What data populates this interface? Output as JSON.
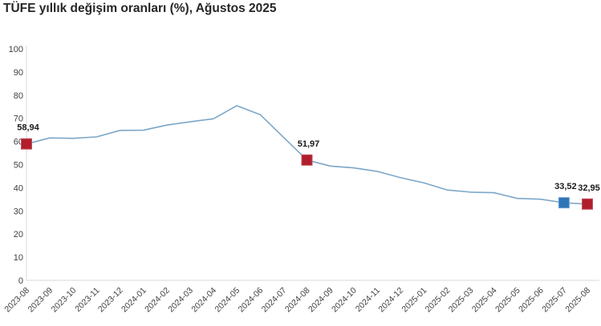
{
  "header": {
    "title": "TÜFE yıllık değişim oranları (%), Ağustos 2025"
  },
  "chart_data": {
    "type": "line",
    "title": "TÜFE yıllık değişim oranları (%), Ağustos 2025",
    "x": [
      "2023-08",
      "2023-09",
      "2023-10",
      "2023-11",
      "2023-12",
      "2024-01",
      "2024-02",
      "2024-03",
      "2024-04",
      "2024-05",
      "2024-06",
      "2024-07",
      "2024-08",
      "2024-09",
      "2024-10",
      "2024-11",
      "2024-12",
      "2025-01",
      "2025-02",
      "2025-03",
      "2025-04",
      "2025-05",
      "2025-06",
      "2025-07",
      "2025-08"
    ],
    "values": [
      58.94,
      61.53,
      61.36,
      61.98,
      64.77,
      64.86,
      67.07,
      68.5,
      69.8,
      75.45,
      71.6,
      61.78,
      51.97,
      49.38,
      48.58,
      47.09,
      44.38,
      42.12,
      39.05,
      38.1,
      37.86,
      35.41,
      35.05,
      33.52,
      32.95
    ],
    "ylim": [
      0,
      100
    ],
    "yticks": [
      0,
      10,
      20,
      30,
      40,
      50,
      60,
      70,
      80,
      90,
      100
    ],
    "grid": false,
    "legend": "none",
    "line_color": "#7ba7c9",
    "axis_color": "#d9d9d9",
    "tick_label_color": "#404040",
    "data_label_color": "#1a1a1a",
    "annotations": [
      {
        "index": 0,
        "label": "58,94",
        "marker_color": "#b01e2c",
        "marker_border": "#c4505a"
      },
      {
        "index": 12,
        "label": "51,97",
        "marker_color": "#b01e2c",
        "marker_border": "#c4505a"
      },
      {
        "index": 23,
        "label": "33,52",
        "marker_color": "#2e75b6",
        "marker_border": "#6ba2d6"
      },
      {
        "index": 24,
        "label": "32,95",
        "marker_color": "#b01e2c",
        "marker_border": "#c4505a"
      }
    ]
  }
}
